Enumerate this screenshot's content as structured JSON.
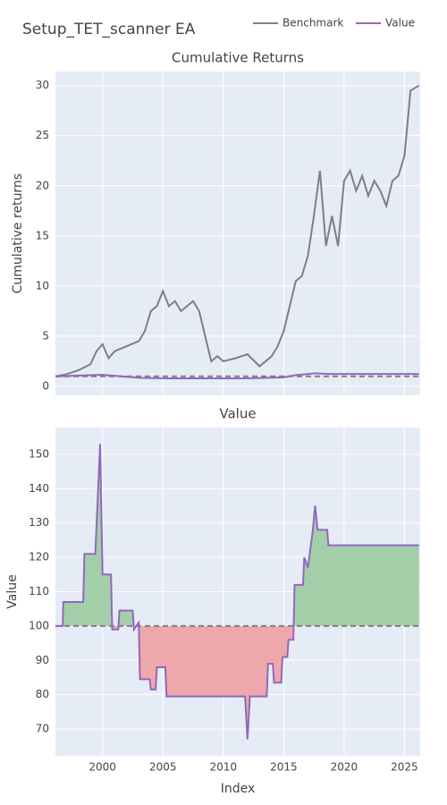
{
  "title": "Setup_TET_scanner EA",
  "chart_data": [
    {
      "type": "line",
      "title": "Cumulative Returns",
      "ylabel": "Cumulative returns",
      "xlim": [
        1996.1,
        2026.3
      ],
      "ylim": [
        -0.9,
        31.4
      ],
      "yticks": [
        0,
        5,
        10,
        15,
        20,
        25,
        30
      ],
      "grid": true,
      "baseline": 1,
      "legend": "top-right",
      "series": [
        {
          "name": "Benchmark",
          "color": "#7f7f7f",
          "x": [
            1996.1,
            1997,
            1998,
            1999,
            1999.5,
            2000,
            2000.5,
            2001,
            2002,
            2003,
            2003.5,
            2004,
            2004.5,
            2005,
            2005.5,
            2006,
            2006.5,
            2007,
            2007.5,
            2008,
            2008.5,
            2009,
            2009.5,
            2010,
            2011,
            2012,
            2013,
            2014,
            2014.5,
            2015,
            2015.5,
            2016,
            2016.5,
            2017,
            2017.5,
            2018,
            2018.5,
            2019,
            2019.5,
            2020,
            2020.5,
            2021,
            2021.5,
            2022,
            2022.5,
            2023,
            2023.5,
            2024,
            2024.5,
            2025,
            2025.5,
            2026.2
          ],
          "values": [
            1.0,
            1.2,
            1.6,
            2.2,
            3.5,
            4.2,
            2.8,
            3.5,
            4.0,
            4.5,
            5.5,
            7.5,
            8.0,
            9.5,
            8.0,
            8.5,
            7.5,
            8.0,
            8.5,
            7.5,
            5.0,
            2.5,
            3.0,
            2.5,
            2.8,
            3.2,
            2.0,
            3.0,
            4.0,
            5.5,
            8.0,
            10.5,
            11.0,
            13.0,
            17.0,
            21.5,
            14.0,
            17.0,
            14.0,
            20.5,
            21.5,
            19.5,
            21.0,
            19.0,
            20.5,
            19.5,
            18.0,
            20.5,
            21.0,
            23.0,
            29.5,
            30.0
          ]
        },
        {
          "name": "Value",
          "color": "#9467bd",
          "x": [
            1996.1,
            2000,
            2003,
            2005.3,
            2012,
            2015,
            2016,
            2017.6,
            2018.7,
            2026.2
          ],
          "values": [
            1.0,
            1.15,
            0.85,
            0.8,
            0.79,
            0.9,
            1.12,
            1.3,
            1.23,
            1.23
          ]
        }
      ]
    },
    {
      "type": "line",
      "title": "Value",
      "ylabel": "Value",
      "xlabel": "Index",
      "xlim": [
        1996.1,
        2026.3
      ],
      "ylim": [
        62.2,
        157.8
      ],
      "xticks": [
        2000,
        2005,
        2010,
        2015,
        2020,
        2025
      ],
      "yticks": [
        70,
        80,
        90,
        100,
        110,
        120,
        130,
        140,
        150
      ],
      "grid": true,
      "baseline": 100,
      "fill_above_color": "#a3cfa8",
      "fill_below_color": "#eea8ab",
      "series": [
        {
          "color": "#9467bd",
          "x": [
            1996.1,
            1996.7,
            1996.75,
            1998.4,
            1998.5,
            1999.4,
            1999.8,
            2000,
            2000.7,
            2000.8,
            2001.3,
            2001.4,
            2002.5,
            2002.6,
            2003,
            2003.1,
            2003.9,
            2004,
            2004.4,
            2004.5,
            2005.2,
            2005.3,
            2011.8,
            2012,
            2012.2,
            2013.6,
            2013.7,
            2014.1,
            2014.2,
            2014.8,
            2014.9,
            2015.3,
            2015.4,
            2015.8,
            2015.9,
            2016.6,
            2016.7,
            2017,
            2017.4,
            2017.6,
            2017.8,
            2018.6,
            2018.7,
            2026.2
          ],
          "values": [
            100,
            100,
            107,
            107,
            121,
            121,
            153,
            115,
            115,
            99,
            99,
            104.5,
            104.5,
            99,
            101,
            84.5,
            84.5,
            81.5,
            81.5,
            88,
            88,
            79.5,
            79.5,
            67,
            79.5,
            79.5,
            89,
            89,
            83.5,
            83.5,
            91,
            91,
            96,
            96,
            112,
            112,
            120,
            117,
            127.5,
            135,
            128,
            128,
            123.5,
            123.5
          ]
        }
      ]
    }
  ]
}
